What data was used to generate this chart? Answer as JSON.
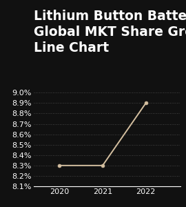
{
  "title_lines": [
    "Lithium Button Battery",
    "Global MKT Share Growth",
    "Line Chart"
  ],
  "x": [
    2020,
    2021,
    2022
  ],
  "y": [
    8.3,
    8.3,
    8.9
  ],
  "xlim": [
    2019.4,
    2022.8
  ],
  "ylim": [
    8.1,
    9.02
  ],
  "yticks": [
    8.1,
    8.2,
    8.3,
    8.4,
    8.5,
    8.6,
    8.7,
    8.8,
    8.9,
    9.0
  ],
  "xticks": [
    2020,
    2021,
    2022
  ],
  "line_color": "#d4bfa0",
  "marker_color": "#d4bfa0",
  "bg_color": "#111111",
  "text_color": "#ffffff",
  "grid_color": "#555555",
  "title_fontsize": 13.5,
  "tick_fontsize": 8,
  "xtick_fontsize": 8
}
